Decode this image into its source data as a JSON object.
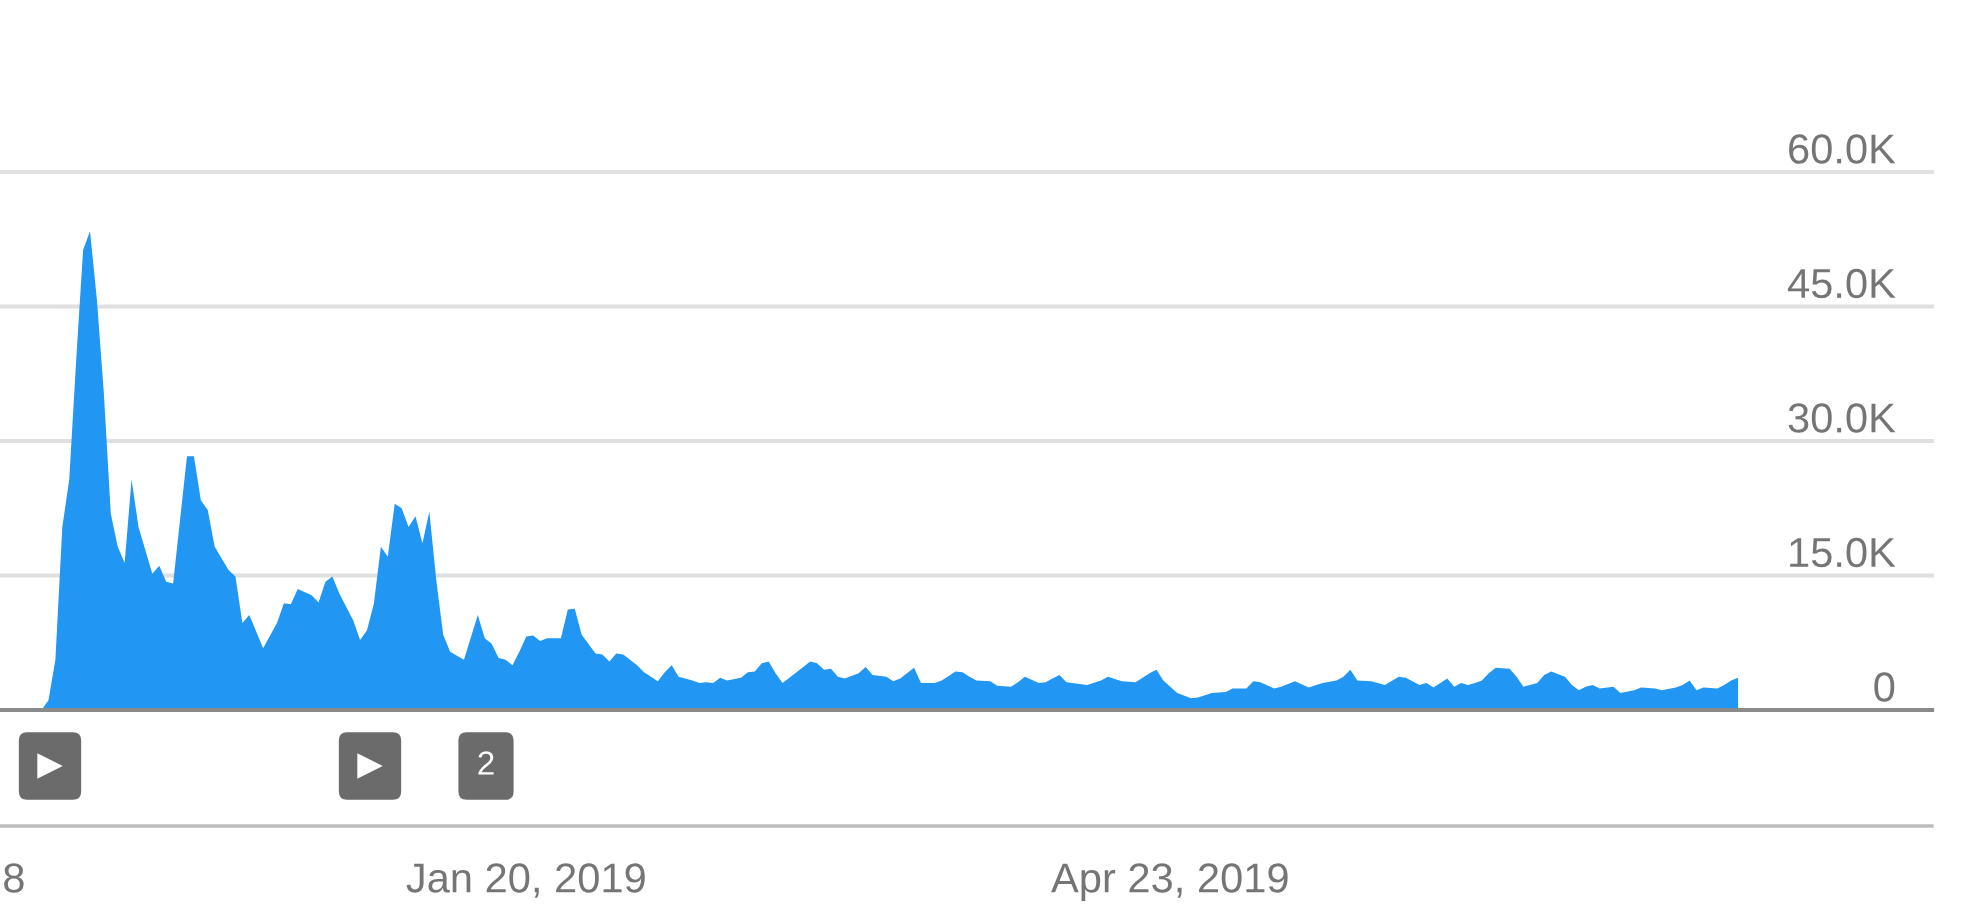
{
  "chart_data": {
    "type": "area",
    "color": "#2196f3",
    "x": [
      "2018-11-11",
      "2018-11-12",
      "2018-11-13",
      "2018-11-14",
      "2018-11-15",
      "2018-11-16",
      "2018-11-17",
      "2018-11-18",
      "2018-11-19",
      "2018-11-20",
      "2018-11-21",
      "2018-11-22",
      "2018-11-23",
      "2018-11-24",
      "2018-11-25",
      "2018-11-27",
      "2018-11-28",
      "2018-11-29",
      "2018-11-30",
      "2018-12-01",
      "2018-12-02",
      "2018-12-03",
      "2018-12-04",
      "2018-12-05",
      "2018-12-06",
      "2018-12-08",
      "2018-12-09",
      "2018-12-10",
      "2018-12-11",
      "2018-12-13",
      "2018-12-15",
      "2018-12-16",
      "2018-12-17",
      "2018-12-18",
      "2018-12-20",
      "2018-12-21",
      "2018-12-22",
      "2018-12-23",
      "2018-12-24",
      "2018-12-26",
      "2018-12-27",
      "2018-12-28",
      "2018-12-29",
      "2018-12-30",
      "2018-12-31",
      "2019-01-01",
      "2019-01-02",
      "2019-01-03",
      "2019-01-04",
      "2019-01-05",
      "2019-01-06",
      "2019-01-07",
      "2019-01-08",
      "2019-01-09",
      "2019-01-11",
      "2019-01-13",
      "2019-01-14",
      "2019-01-15",
      "2019-01-16",
      "2019-01-17",
      "2019-01-18",
      "2019-01-19",
      "2019-01-20",
      "2019-01-21",
      "2019-01-22",
      "2019-01-23",
      "2019-01-25",
      "2019-01-26",
      "2019-01-27",
      "2019-01-28",
      "2019-01-30",
      "2019-01-31",
      "2019-02-01",
      "2019-02-02",
      "2019-02-03",
      "2019-02-05",
      "2019-02-06",
      "2019-02-08",
      "2019-02-09",
      "2019-02-10",
      "2019-02-11",
      "2019-02-13",
      "2019-02-14",
      "2019-02-15",
      "2019-02-16",
      "2019-02-17",
      "2019-02-18",
      "2019-02-20",
      "2019-02-21",
      "2019-02-22",
      "2019-02-23",
      "2019-02-24",
      "2019-02-25",
      "2019-02-26",
      "2019-02-27",
      "2019-03-01",
      "2019-03-02",
      "2019-03-03",
      "2019-03-04",
      "2019-03-05",
      "2019-03-06",
      "2019-03-07",
      "2019-03-09",
      "2019-03-10",
      "2019-03-11",
      "2019-03-13",
      "2019-03-14",
      "2019-03-15",
      "2019-03-17",
      "2019-03-18",
      "2019-03-20",
      "2019-03-21",
      "2019-03-23",
      "2019-03-24",
      "2019-03-25",
      "2019-03-26",
      "2019-03-28",
      "2019-03-29",
      "2019-03-31",
      "2019-04-01",
      "2019-04-02",
      "2019-04-04",
      "2019-04-05",
      "2019-04-06",
      "2019-04-07",
      "2019-04-08",
      "2019-04-11",
      "2019-04-13",
      "2019-04-14",
      "2019-04-16",
      "2019-04-18",
      "2019-04-20",
      "2019-04-21",
      "2019-04-22",
      "2019-04-24",
      "2019-04-26",
      "2019-04-27",
      "2019-04-29",
      "2019-05-01",
      "2019-05-02",
      "2019-05-04",
      "2019-05-05",
      "2019-05-06",
      "2019-05-08",
      "2019-05-09",
      "2019-05-11",
      "2019-05-13",
      "2019-05-15",
      "2019-05-17",
      "2019-05-18",
      "2019-05-19",
      "2019-05-20",
      "2019-05-22",
      "2019-05-24",
      "2019-05-26",
      "2019-05-27",
      "2019-05-29",
      "2019-05-30",
      "2019-05-31",
      "2019-06-01",
      "2019-06-02",
      "2019-06-03",
      "2019-06-04",
      "2019-06-05",
      "2019-06-06",
      "2019-06-07",
      "2019-06-08",
      "2019-06-09",
      "2019-06-11",
      "2019-06-12",
      "2019-06-13",
      "2019-06-15",
      "2019-06-16",
      "2019-06-17",
      "2019-06-19",
      "2019-06-20",
      "2019-06-21",
      "2019-06-22",
      "2019-06-23",
      "2019-06-24",
      "2019-06-26",
      "2019-06-27",
      "2019-06-29",
      "2019-06-30",
      "2019-07-02",
      "2019-07-03",
      "2019-07-05",
      "2019-07-06",
      "2019-07-07",
      "2019-07-08",
      "2019-07-09",
      "2019-07-11",
      "2019-07-12",
      "2019-07-13",
      "2019-07-14"
    ],
    "values": [
      0,
      1100,
      5600,
      20400,
      25700,
      39000,
      51300,
      53400,
      45700,
      35300,
      21900,
      18200,
      16400,
      25700,
      20400,
      15200,
      16100,
      14300,
      14100,
      21200,
      28300,
      28300,
      23400,
      22300,
      18200,
      15600,
      14900,
      9700,
      10600,
      6900,
      9700,
      11900,
      11800,
      13500,
      12800,
      12000,
      14300,
      14900,
      13000,
      10000,
      7800,
      8900,
      11900,
      18200,
      17100,
      23000,
      22500,
      20400,
      21600,
      18600,
      22100,
      14500,
      8400,
      6500,
      5600,
      10600,
      8000,
      7400,
      5800,
      5600,
      5000,
      6500,
      8200,
      8300,
      7700,
      8000,
      8000,
      11200,
      11300,
      8400,
      6300,
      6200,
      5400,
      6300,
      6200,
      5000,
      4200,
      3200,
      4200,
      5000,
      3700,
      3300,
      3000,
      3100,
      3000,
      3600,
      3300,
      3600,
      4200,
      4300,
      5200,
      5400,
      4100,
      3000,
      3600,
      4800,
      5400,
      5200,
      4500,
      4600,
      3700,
      3500,
      4100,
      4800,
      3900,
      3700,
      3200,
      3500,
      4700,
      3000,
      3000,
      3300,
      4300,
      4200,
      3700,
      3300,
      3200,
      2700,
      2600,
      3100,
      3700,
      3000,
      3100,
      3500,
      3900,
      3100,
      2800,
      3300,
      3700,
      3200,
      3100,
      4100,
      4500,
      3300,
      1900,
      1300,
      1400,
      1900,
      2000,
      2400,
      2400,
      3200,
      3100,
      2400,
      2600,
      3200,
      2500,
      3000,
      3300,
      3700,
      4500,
      3300,
      3200,
      2800,
      3700,
      3600,
      2800,
      3000,
      2500,
      3000,
      3500,
      2600,
      3000,
      2800,
      3000,
      3300,
      4100,
      4700,
      4600,
      3700,
      2600,
      3000,
      3900,
      4300,
      3700,
      2800,
      2200,
      2600,
      2800,
      2400,
      2600,
      1900,
      2200,
      2500,
      2400,
      2200,
      2500,
      2800,
      3300,
      2200,
      2500,
      2400,
      2800,
      3300,
      3600
    ],
    "xlim": [
      "2018-11-05",
      "2019-08-11"
    ],
    "xticks": [
      {
        "value": "2018-11-07",
        "label": "8"
      },
      {
        "value": "2019-01-20",
        "label": "Jan 20, 2019"
      },
      {
        "value": "2019-04-23",
        "label": "Apr 23, 2019"
      }
    ],
    "ylim": [
      0,
      60000
    ],
    "yticks": [
      0,
      {
        "value": 15000,
        "label": "15.0K"
      },
      {
        "value": 30000,
        "label": "30.0K"
      },
      {
        "value": 45000,
        "label": "45.0K"
      },
      {
        "value": 60000,
        "label": "60.0K"
      }
    ],
    "grid": "y",
    "annotations": [
      "▶",
      "▶",
      "2"
    ]
  }
}
